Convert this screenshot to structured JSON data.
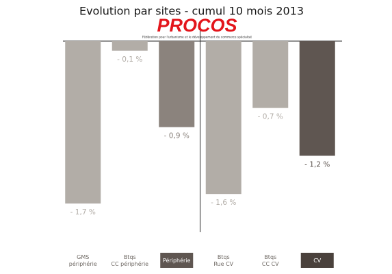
{
  "chart_data": {
    "type": "bar",
    "title": "Evolution par sites - cumul 10 mois 2013",
    "logo": "PROCOS",
    "logo_subtitle": "Fédération pour l'urbanisme et le développement du commerce spécialisé",
    "categories": [
      [
        "GMS",
        "périphérie"
      ],
      [
        "Btqs",
        "CC périphérie"
      ],
      [
        "Périphérie"
      ],
      [
        "Btqs",
        "Rue CV"
      ],
      [
        "Btqs",
        "CC CV"
      ],
      [
        "CV"
      ]
    ],
    "values": [
      -1.7,
      -0.1,
      -0.9,
      -1.6,
      -0.7,
      -1.2
    ],
    "value_labels": [
      "- 1,7 %",
      "- 0,1 %",
      "- 0,9 %",
      "- 1,6 %",
      "- 0,7 %",
      "- 1,2 %"
    ],
    "colors": [
      "#b2ada7",
      "#b2ada7",
      "#8b837d",
      "#b2ada7",
      "#b2ada7",
      "#5f5651"
    ],
    "label_backgrounds": [
      null,
      null,
      "#5f5651",
      null,
      null,
      "#4a413c"
    ],
    "ylim": [
      -2,
      0
    ]
  }
}
